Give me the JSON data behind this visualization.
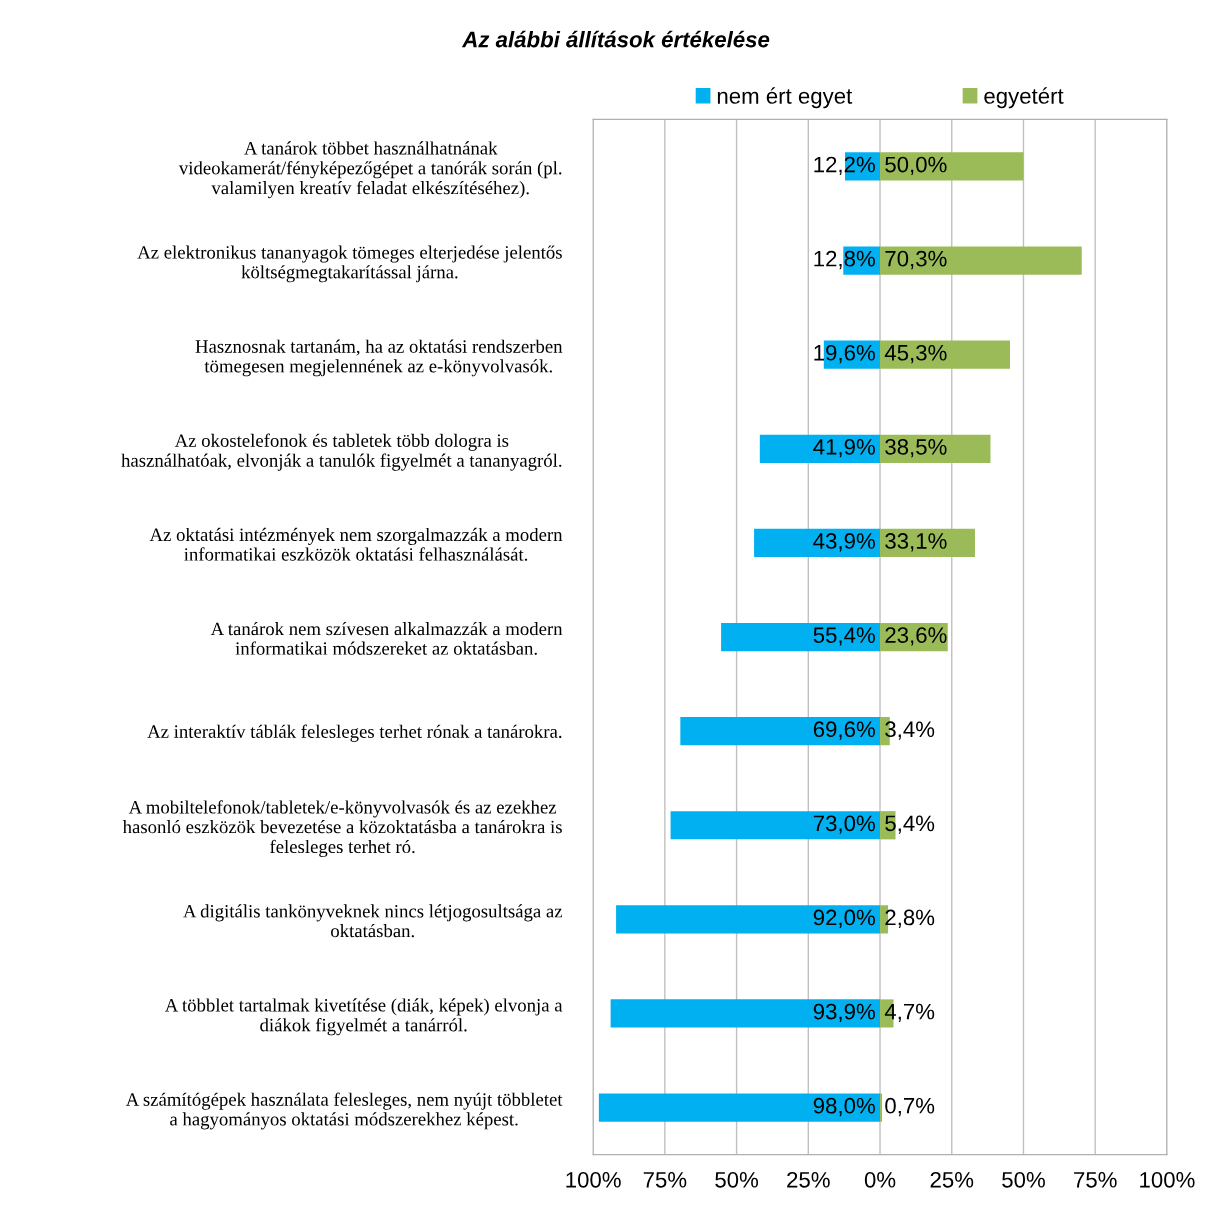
{
  "chart_data": {
    "type": "bar",
    "orientation": "horizontal",
    "title": "Az alábbi állítások értékelése",
    "categories": [
      "A tanárok többet használhatnának\nvideokamerát/fényképezőgépet a tanórák során (pl.\nvalamilyen kreatív feladat elkészítéséhez).",
      "Az elektronikus tananyagok tömeges elterjedése jelentős\nköltségmegtakarítással járna.",
      "Hasznosnak tartanám, ha az oktatási rendszerben\ntömegesen megjelennének az e-könyvolvasók.",
      "Az okostelefonok és tabletek több dologra is\nhasználhatóak, elvonják a tanulók figyelmét a tananyagról.",
      "Az oktatási intézmények nem szorgalmazzák a modern\ninformatikai eszközök oktatási felhasználását.",
      "A tanárok nem szívesen alkalmazzák a modern\ninformatikai módszereket az oktatásban.",
      "Az interaktív táblák felesleges terhet rónak a tanárokra.",
      "A mobiltelefonok/tabletek/e-könyvolvasók és az ezekhez\nhasonló eszközök bevezetése a közoktatásba a tanárokra is\nfelesleges terhet ró.",
      "A digitális tankönyveknek nincs létjogosultsága az\noktatásban.",
      "A többlet tartalmak kivetítése (diák, képek) elvonja a\ndiákok figyelmét a tanárról.",
      "A számítógépek használata felesleges, nem nyújt többletet\na hagyományos oktatási módszerekhez képest."
    ],
    "series": [
      {
        "name": "nem ért egyet",
        "color": "#00b0f0",
        "base": [
          -12.2,
          -12.8,
          -19.6,
          -41.9,
          -43.9,
          -55.4,
          -69.6,
          -73.0,
          -92.0,
          -93.9,
          -98.0
        ],
        "values": [
          12.2,
          12.8,
          19.6,
          41.9,
          43.9,
          55.4,
          69.6,
          73.0,
          92.0,
          93.9,
          98.0
        ],
        "value_labels": [
          "12,2%",
          "12,8%",
          "19,6%",
          "41,9%",
          "43,9%",
          "55,4%",
          "69,6%",
          "73,0%",
          "92,0%",
          "93,9%",
          "98,0%"
        ]
      },
      {
        "name": "egyetért",
        "color": "#9bbb59",
        "values": [
          50.0,
          70.3,
          45.3,
          38.5,
          33.1,
          23.6,
          3.4,
          5.4,
          2.8,
          4.7,
          0.7
        ],
        "value_labels": [
          "50,0%",
          "70,3%",
          "45,3%",
          "38,5%",
          "33,1%",
          "23,6%",
          "3,4%",
          "5,4%",
          "2,8%",
          "4,7%",
          "0,7%"
        ]
      }
    ],
    "xlim": [
      -100,
      100
    ],
    "xticks": [
      {
        "value": -100,
        "label": "100%"
      },
      {
        "value": -75,
        "label": "75%"
      },
      {
        "value": -50,
        "label": "50%"
      },
      {
        "value": -25,
        "label": "25%"
      },
      {
        "value": 0,
        "label": "0%"
      },
      {
        "value": 25,
        "label": "25%"
      },
      {
        "value": 50,
        "label": "50%"
      },
      {
        "value": 75,
        "label": "75%"
      },
      {
        "value": 100,
        "label": "100%"
      }
    ],
    "grid": "x",
    "legend": "top"
  }
}
